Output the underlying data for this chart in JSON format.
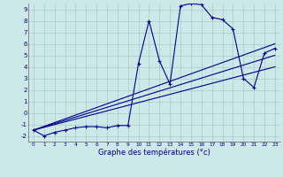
{
  "xlabel": "Graphe des températures (°c)",
  "background_color": "#cce8e8",
  "grid_color": "#aacccc",
  "line_color": "#00008b",
  "xlim": [
    -0.5,
    23.5
  ],
  "ylim": [
    -2.5,
    9.5
  ],
  "xticks": [
    0,
    1,
    2,
    3,
    4,
    5,
    6,
    7,
    8,
    9,
    10,
    11,
    12,
    13,
    14,
    15,
    16,
    17,
    18,
    19,
    20,
    21,
    22,
    23
  ],
  "yticks": [
    -2,
    -1,
    0,
    1,
    2,
    3,
    4,
    5,
    6,
    7,
    8,
    9
  ],
  "curve1_x": [
    0,
    1,
    2,
    3,
    4,
    5,
    6,
    7,
    8,
    9,
    10,
    11,
    12,
    13,
    14,
    15,
    16,
    17,
    18,
    19,
    20,
    21,
    22,
    23
  ],
  "curve1_y": [
    -1.5,
    -2.0,
    -1.7,
    -1.5,
    -1.3,
    -1.2,
    -1.2,
    -1.3,
    -1.1,
    -1.1,
    4.3,
    8.0,
    4.5,
    2.5,
    9.3,
    9.5,
    9.4,
    8.3,
    8.1,
    7.3,
    3.0,
    2.2,
    5.2,
    5.6
  ],
  "line1_x": [
    0,
    23
  ],
  "line1_y": [
    -1.5,
    6.0
  ],
  "line2_x": [
    0,
    23
  ],
  "line2_y": [
    -1.5,
    5.0
  ],
  "line3_x": [
    0,
    23
  ],
  "line3_y": [
    -1.5,
    4.0
  ]
}
